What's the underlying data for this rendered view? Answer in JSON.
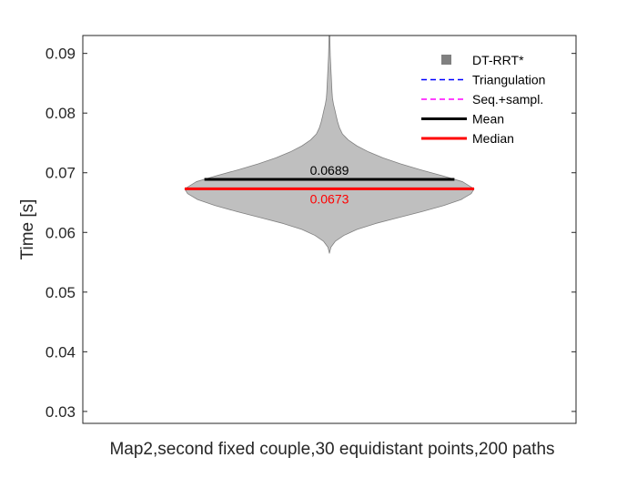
{
  "chart_data": {
    "type": "violin",
    "title": "",
    "xlabel": "Map2,second fixed couple,30 equidistant points,200 paths",
    "ylabel": "Time [s]",
    "ylim": [
      0.028,
      0.093
    ],
    "yticks": [
      0.03,
      0.04,
      0.05,
      0.06,
      0.07,
      0.08,
      0.09
    ],
    "ytick_labels": [
      "0.03",
      "0.04",
      "0.05",
      "0.06",
      "0.07",
      "0.08",
      "0.09"
    ],
    "grid": false,
    "legend_position": "top-right",
    "legend": [
      {
        "label": "DT-RRT*",
        "style": "patch",
        "color": "#808080"
      },
      {
        "label": "Triangulation",
        "style": "dashed",
        "color": "#0000ff"
      },
      {
        "label": "Seq.+sampl.",
        "style": "dashed",
        "color": "#ff00ff"
      },
      {
        "label": "Mean",
        "style": "solid",
        "color": "#000000"
      },
      {
        "label": "Median",
        "style": "solid",
        "color": "#ff0000"
      }
    ],
    "series": [
      {
        "name": "DT-RRT*",
        "fill_color": "#bfbfbf",
        "edge_color": "#808080",
        "mean": 0.0689,
        "median": 0.0673,
        "mean_label": "0.0689",
        "median_label": "0.0673",
        "mean_color": "#000000",
        "median_color": "#ff0000",
        "density_profile": [
          {
            "y": 0.0565,
            "w": 0.0
          },
          {
            "y": 0.0575,
            "w": 0.01
          },
          {
            "y": 0.0585,
            "w": 0.04
          },
          {
            "y": 0.0595,
            "w": 0.1
          },
          {
            "y": 0.0605,
            "w": 0.19
          },
          {
            "y": 0.0615,
            "w": 0.32
          },
          {
            "y": 0.0625,
            "w": 0.48
          },
          {
            "y": 0.0635,
            "w": 0.64
          },
          {
            "y": 0.0645,
            "w": 0.79
          },
          {
            "y": 0.0655,
            "w": 0.91
          },
          {
            "y": 0.0665,
            "w": 0.98
          },
          {
            "y": 0.0673,
            "w": 1.0
          },
          {
            "y": 0.0685,
            "w": 0.92
          },
          {
            "y": 0.0695,
            "w": 0.78
          },
          {
            "y": 0.0705,
            "w": 0.63
          },
          {
            "y": 0.0715,
            "w": 0.49
          },
          {
            "y": 0.0725,
            "w": 0.37
          },
          {
            "y": 0.0735,
            "w": 0.27
          },
          {
            "y": 0.0745,
            "w": 0.19
          },
          {
            "y": 0.0755,
            "w": 0.13
          },
          {
            "y": 0.0765,
            "w": 0.09
          },
          {
            "y": 0.0775,
            "w": 0.07
          },
          {
            "y": 0.0785,
            "w": 0.057
          },
          {
            "y": 0.0795,
            "w": 0.047
          },
          {
            "y": 0.0805,
            "w": 0.038
          },
          {
            "y": 0.0815,
            "w": 0.028
          },
          {
            "y": 0.0825,
            "w": 0.021
          },
          {
            "y": 0.0835,
            "w": 0.018
          },
          {
            "y": 0.0845,
            "w": 0.016
          },
          {
            "y": 0.0855,
            "w": 0.014
          },
          {
            "y": 0.0865,
            "w": 0.012
          },
          {
            "y": 0.0875,
            "w": 0.01
          },
          {
            "y": 0.0885,
            "w": 0.008
          },
          {
            "y": 0.0895,
            "w": 0.006
          },
          {
            "y": 0.0905,
            "w": 0.005
          },
          {
            "y": 0.0915,
            "w": 0.004
          },
          {
            "y": 0.093,
            "w": 0.003
          }
        ]
      }
    ]
  }
}
